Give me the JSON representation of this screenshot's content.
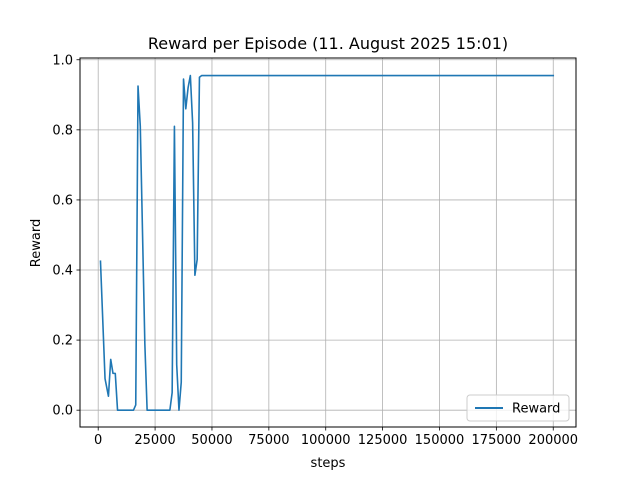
{
  "chart_data": {
    "type": "line",
    "title": "Reward per Episode (11. August 2025 15:01)",
    "xlabel": "steps",
    "ylabel": "Reward",
    "xlim": [
      -8000,
      210000
    ],
    "ylim": [
      -0.048,
      1.005
    ],
    "xticks": [
      0,
      25000,
      50000,
      75000,
      100000,
      125000,
      150000,
      175000,
      200000
    ],
    "xtick_labels": [
      "0",
      "25000",
      "50000",
      "75000",
      "100000",
      "125000",
      "150000",
      "175000",
      "200000"
    ],
    "yticks": [
      0.0,
      0.2,
      0.4,
      0.6,
      0.8,
      1.0
    ],
    "ytick_labels": [
      "0.0",
      "0.2",
      "0.4",
      "0.6",
      "0.8",
      "1.0"
    ],
    "grid": true,
    "legend": {
      "placement": "lower-right"
    },
    "series": [
      {
        "name": "Reward",
        "color": "#1f77b4",
        "x": [
          1000,
          3000,
          4500,
          5500,
          6500,
          7500,
          8500,
          15500,
          16500,
          17500,
          18500,
          20500,
          21500,
          31500,
          32500,
          33500,
          34500,
          35500,
          36500,
          37500,
          38500,
          39500,
          40500,
          41500,
          42500,
          43500,
          44500,
          45500,
          47500,
          200000
        ],
        "y": [
          0.425,
          0.09,
          0.04,
          0.145,
          0.105,
          0.105,
          0.0,
          0.0,
          0.015,
          0.925,
          0.81,
          0.19,
          0.0,
          0.0,
          0.05,
          0.81,
          0.13,
          0.0,
          0.08,
          0.945,
          0.86,
          0.92,
          0.955,
          0.82,
          0.385,
          0.43,
          0.95,
          0.955,
          0.955,
          0.955
        ]
      }
    ]
  }
}
